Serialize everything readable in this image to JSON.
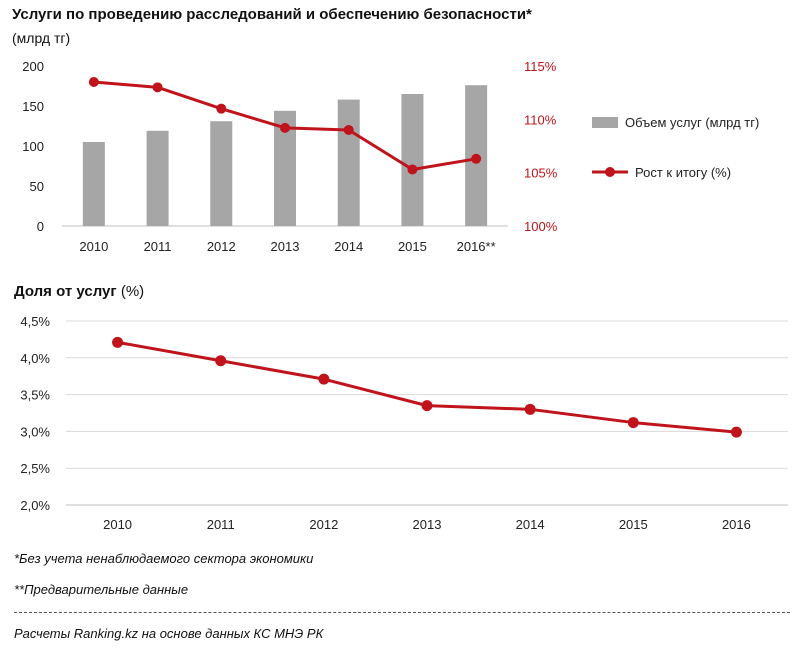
{
  "chart_data": [
    {
      "type": "bar+line",
      "title": "Услуги по проведению расследований  и обеспечению безопасности*",
      "subtitle": "(млрд тг)",
      "categories": [
        "2010",
        "2011",
        "2012",
        "2013",
        "2014",
        "2015",
        "2016**"
      ],
      "series": [
        {
          "name": "Объем услуг (млрд тг)",
          "type": "bar",
          "axis": "left",
          "values": [
            105,
            119,
            131,
            144,
            158,
            165,
            176
          ]
        },
        {
          "name": "Рост к итогу (%)",
          "type": "line",
          "axis": "right",
          "values": [
            113.5,
            113.0,
            111.0,
            109.2,
            109.0,
            105.3,
            106.3
          ]
        }
      ],
      "left_axis": {
        "ylim": [
          0,
          200
        ],
        "ticks": [
          0,
          50,
          100,
          150,
          200
        ],
        "tick_labels": [
          "0",
          "50",
          "100",
          "150",
          "200"
        ]
      },
      "right_axis": {
        "ylim": [
          100,
          115
        ],
        "ticks": [
          100,
          105,
          110,
          115
        ],
        "tick_labels": [
          "100%",
          "105%",
          "110%",
          "115%"
        ]
      },
      "legend_position": "right",
      "colors": {
        "bar": "#a6a6a6",
        "line": "#c0141c"
      }
    },
    {
      "type": "line",
      "title": "Доля от услуг",
      "title_unit": "(%)",
      "categories": [
        "2010",
        "2011",
        "2012",
        "2013",
        "2014",
        "2015",
        "2016"
      ],
      "values": [
        4.21,
        3.96,
        3.71,
        3.35,
        3.3,
        3.12,
        2.99
      ],
      "ylim": [
        2.0,
        4.5
      ],
      "ticks": [
        2.0,
        2.5,
        3.0,
        3.5,
        4.0,
        4.5
      ],
      "tick_labels": [
        "2,0%",
        "2,5%",
        "3,0%",
        "3,5%",
        "4,0%",
        "4,5%"
      ],
      "grid": true,
      "colors": {
        "line": "#c0141c",
        "grid": "#d9d9d9"
      }
    }
  ],
  "notes": {
    "note1": "*Без учета ненаблюдаемого  сектора экономики",
    "note2": "**Предварительные данные",
    "source": "Расчеты Ranking.kz на основе данных  КС МНЭ РК"
  }
}
